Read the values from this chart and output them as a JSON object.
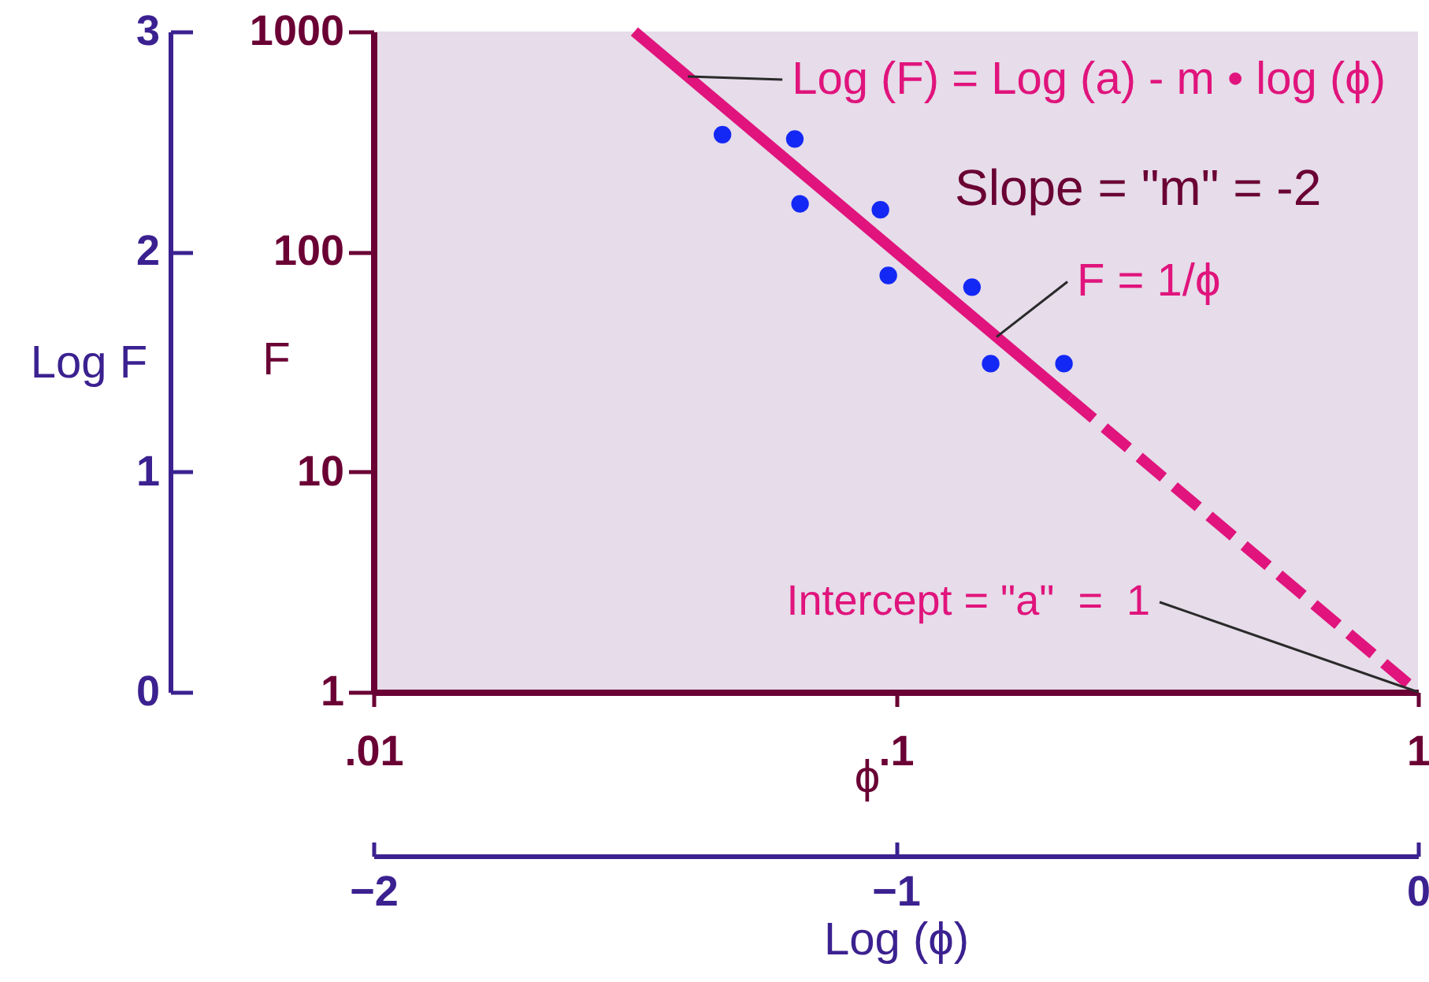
{
  "chart_data": {
    "type": "scatter",
    "xlabel": "ϕ",
    "ylabel": "F",
    "x2label": "Log (ϕ)",
    "y2label": "Log F",
    "log": "xy",
    "xlim": [
      0.01,
      1
    ],
    "ylim": [
      1,
      1000
    ],
    "xticks": [
      {
        "value": 0.01,
        "label": ".01"
      },
      {
        "value": 0.1,
        "label": ".1"
      },
      1
    ],
    "yticks": [
      1,
      10,
      100,
      1000
    ],
    "x2lim": [
      -2,
      0
    ],
    "x2ticks": [
      -2,
      -1,
      0
    ],
    "y2lim": [
      0,
      3
    ],
    "y2ticks": [
      0,
      1,
      2,
      3
    ],
    "series": [
      {
        "color": "#1428f5",
        "marker": "circle",
        "x": [
          0.0466,
          0.0641,
          0.0656,
          0.0935,
          0.0968,
          0.14,
          0.152,
          0.21
        ],
        "values": [
          340,
          325,
          165,
          155,
          78,
          69,
          31,
          31
        ]
      },
      {
        "type": "line",
        "color": "#e0147c",
        "line_style": "solid",
        "x": [
          0.0316,
          0.215
        ],
        "values": [
          1000,
          21.6
        ]
      },
      {
        "type": "line",
        "color": "#e0147c",
        "line_style": "dashed",
        "x": [
          0.215,
          1
        ],
        "values": [
          21.6,
          1
        ]
      }
    ],
    "annotations": [
      {
        "text": "Log (F) = Log (a) - m • log (ϕ)",
        "x": 0.04,
        "y": 625
      },
      "Slope = \"m\" = -2",
      {
        "text": "F = 1/ϕ",
        "x": 0.156,
        "y": 41
      },
      {
        "text": "Intercept = \"a\"  =  1",
        "x": 1,
        "y": 1
      }
    ]
  }
}
